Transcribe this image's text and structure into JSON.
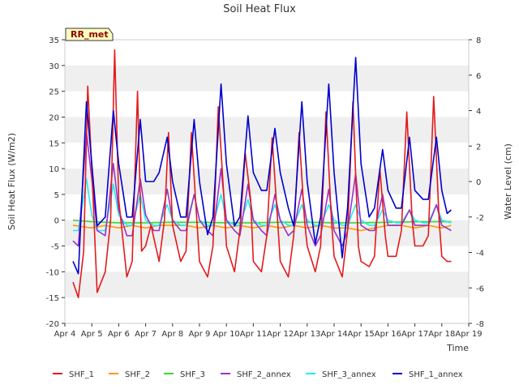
{
  "chart_data": {
    "type": "line",
    "title": "Soil Heat Flux",
    "xlabel": "Time",
    "ylabel": "Soil Heat Flux (W/m2)",
    "y2label": "Water Level (cm)",
    "badge": "RR_met",
    "x_ticks": [
      "Apr 4",
      "Apr 5",
      "Apr 6",
      "Apr 7",
      "Apr 8",
      "Apr 9",
      "Apr 10",
      "Apr 11",
      "Apr 12",
      "Apr 13",
      "Apr 14",
      "Apr 15",
      "Apr 16",
      "Apr 17",
      "Apr 18",
      "Apr 19"
    ],
    "xlim": [
      4,
      19
    ],
    "ylim": [
      -20,
      35
    ],
    "y_ticks": [
      -20,
      -15,
      -10,
      -5,
      0,
      5,
      10,
      15,
      20,
      25,
      30,
      35
    ],
    "y2lim": [
      -8,
      8
    ],
    "y2_ticks": [
      -8,
      -6,
      -4,
      -2,
      0,
      2,
      4,
      6,
      8
    ],
    "grid": "horizontal bands",
    "legend_position": "bottom",
    "x_units": "day of April",
    "series": [
      {
        "name": "SHF_1",
        "color": "#e31a1c",
        "axis": "left",
        "x": [
          4.3,
          4.5,
          4.7,
          4.85,
          5.0,
          5.2,
          5.5,
          5.7,
          5.85,
          6.0,
          6.3,
          6.5,
          6.7,
          6.85,
          7.0,
          7.2,
          7.5,
          7.7,
          7.85,
          8.0,
          8.3,
          8.5,
          8.7,
          8.9,
          9.0,
          9.3,
          9.5,
          9.7,
          9.9,
          10.0,
          10.3,
          10.5,
          10.7,
          10.9,
          11.0,
          11.3,
          11.5,
          11.7,
          11.9,
          12.0,
          12.3,
          12.5,
          12.7,
          12.9,
          13.0,
          13.3,
          13.5,
          13.7,
          13.9,
          14.0,
          14.3,
          14.5,
          14.7,
          14.9,
          15.0,
          15.3,
          15.5,
          15.7,
          15.9,
          16.0,
          16.3,
          16.5,
          16.7,
          16.9,
          17.0,
          17.3,
          17.5,
          17.7,
          17.9,
          18.0,
          18.2,
          18.35
        ],
        "y": [
          -12,
          -15,
          -6,
          26,
          10,
          -14,
          -10,
          0,
          33,
          4,
          -11,
          -8,
          25,
          -6,
          -5,
          -1,
          -8,
          0,
          17,
          -1,
          -8,
          -6,
          17,
          0,
          -8,
          -11,
          -5,
          22,
          5,
          -5,
          -10,
          -2,
          13,
          4,
          -8,
          -10,
          -3,
          16,
          0,
          -8,
          -11,
          -3,
          17,
          0,
          -5,
          -10,
          -5,
          21,
          0,
          -7,
          -11,
          -2,
          23,
          -5,
          -8,
          -9,
          -7,
          10,
          -3,
          -7,
          -7,
          -2,
          21,
          0,
          -5,
          -5,
          -3,
          24,
          0,
          -7,
          -8,
          -8
        ]
      },
      {
        "name": "SHF_2",
        "color": "#ff9900",
        "axis": "left",
        "x": [
          4.3,
          5.0,
          5.5,
          6.0,
          6.5,
          7.0,
          7.5,
          8.0,
          8.5,
          9.0,
          9.5,
          10.0,
          10.5,
          11.0,
          11.5,
          12.0,
          12.5,
          13.0,
          13.5,
          14.0,
          14.5,
          15.0,
          15.5,
          16.0,
          16.5,
          17.0,
          17.5,
          18.0,
          18.35
        ],
        "y": [
          -1,
          -1.5,
          -1,
          -1.5,
          -1,
          -1.5,
          -1,
          -1,
          -1,
          -1.5,
          -1,
          -1.5,
          -1,
          -1.5,
          -1,
          -1.5,
          -1,
          -1.5,
          -1,
          -1.5,
          -1.5,
          -2,
          -1.5,
          -1,
          -1,
          -1.5,
          -1,
          -1.5,
          -1
        ]
      },
      {
        "name": "SHF_3",
        "color": "#33dd33",
        "axis": "left",
        "x": [
          4.3,
          5.0,
          6.0,
          7.0,
          8.0,
          9.0,
          10.0,
          11.0,
          12.0,
          13.0,
          14.0,
          15.0,
          16.0,
          17.0,
          18.0,
          18.35
        ],
        "y": [
          0,
          -0.3,
          -0.5,
          -0.5,
          -0.4,
          -0.4,
          -0.5,
          -0.5,
          -0.4,
          -0.4,
          -0.5,
          -0.5,
          -0.4,
          -0.3,
          -0.3,
          -0.3
        ]
      },
      {
        "name": "SHF_2_annex",
        "color": "#9933cc",
        "axis": "left",
        "x": [
          4.3,
          4.5,
          4.8,
          5.0,
          5.2,
          5.5,
          5.8,
          6.0,
          6.3,
          6.5,
          6.8,
          7.0,
          7.3,
          7.5,
          7.8,
          8.0,
          8.3,
          8.5,
          8.8,
          9.0,
          9.3,
          9.5,
          9.8,
          10.0,
          10.3,
          10.5,
          10.8,
          11.0,
          11.3,
          11.5,
          11.8,
          12.0,
          12.3,
          12.5,
          12.8,
          13.0,
          13.3,
          13.5,
          13.8,
          14.0,
          14.3,
          14.5,
          14.8,
          15.0,
          15.3,
          15.5,
          15.8,
          16.0,
          16.3,
          16.5,
          16.8,
          17.0,
          17.3,
          17.5,
          17.8,
          18.0,
          18.35
        ],
        "y": [
          -4,
          -5,
          17,
          8,
          -2,
          -3,
          11,
          2,
          -3,
          -3,
          8,
          1,
          -2,
          -2,
          6,
          0,
          -2,
          -2,
          5,
          0,
          -2,
          -3,
          10,
          0,
          -2,
          -3,
          7,
          0,
          -2,
          -3,
          5,
          0,
          -3,
          -2,
          6,
          -1,
          -5,
          -3,
          6,
          -2,
          -5,
          -2,
          9,
          -1,
          -2,
          -2,
          5,
          -1,
          -1,
          -1,
          2,
          -1,
          -1,
          -1,
          3,
          -1,
          -2
        ]
      },
      {
        "name": "SHF_3_annex",
        "color": "#22eeee",
        "axis": "left",
        "x": [
          4.3,
          4.5,
          4.8,
          5.0,
          5.2,
          5.5,
          5.8,
          6.0,
          6.3,
          6.5,
          6.8,
          7.0,
          7.3,
          7.5,
          7.8,
          8.0,
          8.3,
          8.5,
          8.8,
          9.0,
          9.3,
          9.5,
          9.8,
          10.0,
          10.3,
          10.5,
          10.8,
          11.0,
          11.3,
          11.5,
          11.8,
          12.0,
          12.3,
          12.5,
          12.8,
          13.0,
          13.3,
          13.5,
          13.8,
          14.0,
          14.3,
          14.5,
          14.8,
          15.0,
          15.3,
          15.5,
          15.8,
          16.0,
          16.3,
          16.5,
          16.8,
          17.0,
          17.3,
          17.5,
          17.8,
          18.0,
          18.35
        ],
        "y": [
          -2,
          -2,
          8,
          1,
          -2,
          -2,
          7,
          1,
          -1,
          -1,
          5,
          0,
          -1,
          -1,
          3,
          0,
          -1,
          -1,
          5,
          0,
          -1,
          -1,
          5,
          0,
          -1,
          -1,
          4,
          0,
          -1,
          -1,
          3,
          0,
          -1,
          -1,
          3,
          0,
          -1,
          -1,
          3,
          0,
          -1,
          -1,
          3,
          0,
          -1,
          -1,
          2,
          0,
          -0.5,
          -0.5,
          2,
          0,
          -0.5,
          -0.5,
          3,
          0,
          -0.5
        ]
      },
      {
        "name": "SHF_1_annex",
        "color": "#0000cc",
        "axis": "right",
        "x": [
          4.3,
          4.5,
          4.8,
          5.0,
          5.2,
          5.5,
          5.8,
          6.0,
          6.3,
          6.5,
          6.8,
          7.0,
          7.3,
          7.5,
          7.8,
          8.0,
          8.3,
          8.5,
          8.8,
          9.0,
          9.3,
          9.5,
          9.8,
          10.0,
          10.3,
          10.5,
          10.8,
          11.0,
          11.3,
          11.5,
          11.8,
          12.0,
          12.3,
          12.5,
          12.8,
          13.0,
          13.3,
          13.5,
          13.8,
          14.0,
          14.3,
          14.5,
          14.8,
          15.0,
          15.3,
          15.5,
          15.8,
          16.0,
          16.3,
          16.5,
          16.8,
          17.0,
          17.3,
          17.5,
          17.8,
          18.0,
          18.2,
          18.35
        ],
        "y": [
          -4.5,
          -5.2,
          4.5,
          1,
          -2.5,
          -2,
          4,
          1,
          -2,
          -2,
          3.5,
          0,
          0,
          0.5,
          2.5,
          0,
          -2,
          -2,
          3.5,
          0,
          -3,
          -2,
          5.5,
          1,
          -2.5,
          -2,
          3.7,
          0.5,
          -0.5,
          -0.5,
          3,
          0.5,
          -1.5,
          -2.5,
          4.5,
          0,
          -3.5,
          -2,
          5.5,
          0.5,
          -4.3,
          -1.5,
          7,
          1,
          -2,
          -1.5,
          1.8,
          -0.5,
          -1.5,
          -1.5,
          2.5,
          -0.5,
          -1,
          -1,
          2.5,
          -0.5,
          -1.8,
          -1.6
        ]
      }
    ]
  }
}
